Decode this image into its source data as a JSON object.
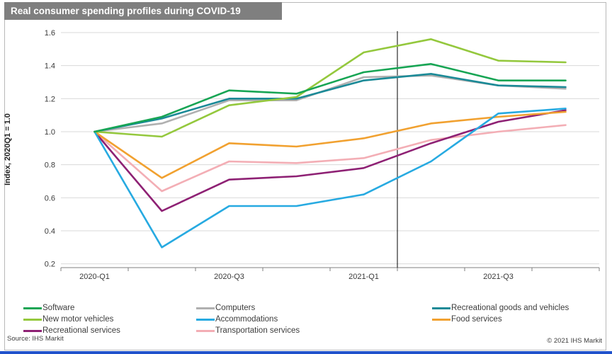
{
  "title": "Real consumer spending profiles during COVID-19",
  "source_label": "Source: IHS Markit",
  "copyright_label": "© 2021 IHS Markit",
  "colors": {
    "title_bar": "#7f7f7f",
    "title_text": "#ffffff",
    "gridline": "#d9d9d9",
    "axis": "#7f7f7f",
    "axis_text": "#3a3a3a",
    "forecast_divider": "#000000",
    "brand_bar": "#2052cc",
    "card_border": "#b9b9b9"
  },
  "chart_data": {
    "type": "line",
    "title": "Real consumer spending profiles during COVID-19",
    "xlabel": "",
    "ylabel": "Index, 2020Q1 = 1.0",
    "ylim": [
      0.2,
      1.6
    ],
    "y_ticks": [
      0.2,
      0.4,
      0.6,
      0.8,
      1.0,
      1.2,
      1.4,
      1.6
    ],
    "grid": true,
    "legend_position": "bottom",
    "categories": [
      "2020-Q1",
      "2020-Q2",
      "2020-Q3",
      "2020-Q4",
      "2021-Q1",
      "2021-Q2",
      "2021-Q3",
      "2021-Q4"
    ],
    "x_ticks": [
      {
        "index": 0,
        "label": "2020-Q1"
      },
      {
        "index": 2,
        "label": "2020-Q3"
      },
      {
        "index": 4,
        "label": "2021-Q1"
      },
      {
        "index": 6,
        "label": "2021-Q3"
      }
    ],
    "forecast_divider_after": "2021-Q1",
    "series": [
      {
        "name": "Transportation services",
        "color": "#f3aeb5",
        "values": [
          1.0,
          0.64,
          0.82,
          0.81,
          0.84,
          0.95,
          1.0,
          1.04
        ]
      },
      {
        "name": "Recreational services",
        "color": "#8e2174",
        "values": [
          1.0,
          0.52,
          0.71,
          0.73,
          0.78,
          0.93,
          1.06,
          1.13
        ]
      },
      {
        "name": "Food services",
        "color": "#f1a130",
        "values": [
          1.0,
          0.72,
          0.93,
          0.91,
          0.96,
          1.05,
          1.09,
          1.12
        ]
      },
      {
        "name": "Accommodations",
        "color": "#27aae1",
        "values": [
          1.0,
          0.3,
          0.55,
          0.55,
          0.62,
          0.82,
          1.11,
          1.14
        ]
      },
      {
        "name": "Computers",
        "color": "#b0b0b0",
        "values": [
          1.0,
          1.05,
          1.19,
          1.19,
          1.33,
          1.34,
          1.28,
          1.26
        ]
      },
      {
        "name": "Recreational goods and vehicles",
        "color": "#1b8a97",
        "values": [
          1.0,
          1.08,
          1.2,
          1.2,
          1.31,
          1.35,
          1.28,
          1.27
        ]
      },
      {
        "name": "New motor vehicles",
        "color": "#94c83d",
        "values": [
          1.0,
          0.97,
          1.16,
          1.21,
          1.48,
          1.56,
          1.43,
          1.42
        ]
      },
      {
        "name": "Software",
        "color": "#17a554",
        "values": [
          1.0,
          1.09,
          1.25,
          1.23,
          1.36,
          1.41,
          1.31,
          1.31
        ]
      }
    ]
  }
}
